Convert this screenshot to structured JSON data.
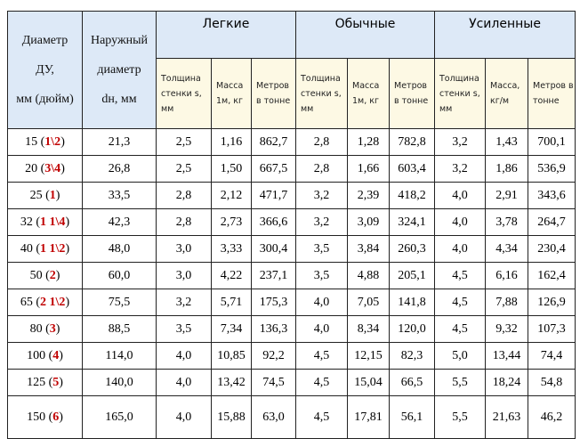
{
  "header": {
    "du": [
      "Диаметр",
      "ДУ,",
      "мм (дюйм)"
    ],
    "outer": [
      "Наружный",
      "диаметр",
      "dн, мм"
    ],
    "groups": [
      "Легкие",
      "Обычные",
      "Усиленные"
    ],
    "sub": [
      [
        "Толщина стенки s, мм",
        "Масса 1м, кг",
        "Метров в тонне"
      ],
      [
        "Толщина стенки s, мм",
        "Масса 1м, кг",
        "Метров в тонне"
      ],
      [
        "Толщина стенки s, мм",
        "Масса, кг/м",
        "Метров в тонне"
      ]
    ]
  },
  "rows": [
    {
      "du": "15",
      "inch": "1\\2",
      "cells": [
        "21,3",
        "2,5",
        "1,16",
        "862,7",
        "2,8",
        "1,28",
        "782,8",
        "3,2",
        "1,43",
        "700,1"
      ]
    },
    {
      "du": "20",
      "inch": "3\\4",
      "cells": [
        "26,8",
        "2,5",
        "1,50",
        "667,5",
        "2,8",
        "1,66",
        "603,4",
        "3,2",
        "1,86",
        "536,9"
      ]
    },
    {
      "du": "25",
      "inch": "1",
      "cells": [
        "33,5",
        "2,8",
        "2,12",
        "471,7",
        "3,2",
        "2,39",
        "418,2",
        "4,0",
        "2,91",
        "343,6"
      ]
    },
    {
      "du": "32",
      "inch": "1 1\\4",
      "cells": [
        "42,3",
        "2,8",
        "2,73",
        "366,6",
        "3,2",
        "3,09",
        "324,1",
        "4,0",
        "3,78",
        "264,7"
      ]
    },
    {
      "du": "40",
      "inch": "1 1\\2",
      "cells": [
        "48,0",
        "3,0",
        "3,33",
        "300,4",
        "3,5",
        "3,84",
        "260,3",
        "4,0",
        "4,34",
        "230,4"
      ]
    },
    {
      "du": "50",
      "inch": "2",
      "cells": [
        "60,0",
        "3,0",
        "4,22",
        "237,1",
        "3,5",
        "4,88",
        "205,1",
        "4,5",
        "6,16",
        "162,4"
      ]
    },
    {
      "du": "65",
      "inch": "2 1\\2",
      "cells": [
        "75,5",
        "3,2",
        "5,71",
        "175,3",
        "4,0",
        "7,05",
        "141,8",
        "4,5",
        "7,88",
        "126,9"
      ]
    },
    {
      "du": "80",
      "inch": "3",
      "cells": [
        "88,5",
        "3,5",
        "7,34",
        "136,3",
        "4,0",
        "8,34",
        "120,0",
        "4,5",
        "9,32",
        "107,3"
      ]
    },
    {
      "du": "100",
      "inch": "4",
      "cells": [
        "114,0",
        "4,0",
        "10,85",
        "92,2",
        "4,5",
        "12,15",
        "82,3",
        "5,0",
        "13,44",
        "74,4"
      ]
    },
    {
      "du": "125",
      "inch": "5",
      "cells": [
        "140,0",
        "4,0",
        "13,42",
        "74,5",
        "4,5",
        "15,04",
        "66,5",
        "5,5",
        "18,24",
        "54,8"
      ]
    },
    {
      "du": "150",
      "inch": "6",
      "cells": [
        "165,0",
        "4,0",
        "15,88",
        "63,0",
        "4,5",
        "17,81",
        "56,1",
        "5,5",
        "21,63",
        "46,2"
      ]
    }
  ]
}
